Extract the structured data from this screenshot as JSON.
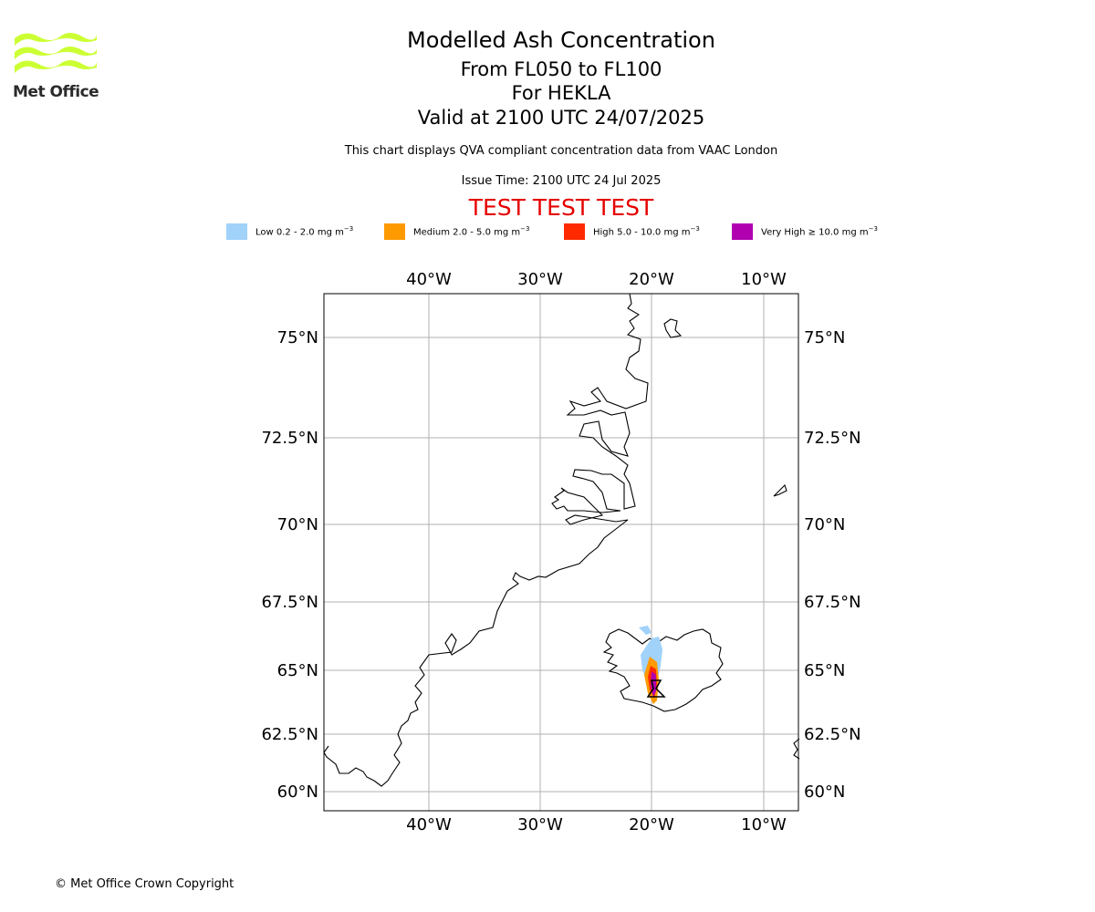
{
  "header": {
    "title": "Modelled Ash Concentration",
    "levels": "From FL050 to FL100",
    "volcano": "For HEKLA",
    "valid": "Valid at 2100 UTC 24/07/2025",
    "description": "This chart displays QVA compliant concentration data from VAAC London",
    "issue_time": "Issue Time: 2100 UTC 24 Jul 2025",
    "test_banner": "TEST TEST TEST"
  },
  "logo": {
    "text": "Met Office",
    "color": "#ccff33"
  },
  "legend": [
    {
      "label": "Low 0.2 - 2.0 mg m",
      "unit_sup": "−3",
      "color": "#a0d2fa"
    },
    {
      "label": "Medium 2.0 - 5.0 mg m",
      "unit_sup": "−3",
      "color": "#ff9900"
    },
    {
      "label": "High 5.0 - 10.0 mg m",
      "unit_sup": "−3",
      "color": "#ff2a00"
    },
    {
      "label": "Very High  ≥  10.0 mg m",
      "unit_sup": "−3",
      "color": "#b000b0"
    }
  ],
  "map": {
    "lon_ticks": [
      "40°W",
      "30°W",
      "20°W",
      "10°W"
    ],
    "lat_ticks": [
      "75°N",
      "72.5°N",
      "70°N",
      "67.5°N",
      "65°N",
      "62.5°N",
      "60°N"
    ],
    "gridlines": true,
    "volcano_marker": "triangle"
  },
  "footer": {
    "copyright": "© Met Office Crown Copyright"
  }
}
